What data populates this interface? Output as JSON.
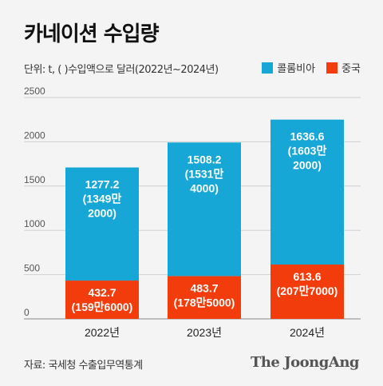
{
  "header": {
    "title": "카네이션 수입량",
    "subtitle": "단위: t, ( )수입액으로 달러(2022년~2024년)"
  },
  "legend": [
    {
      "name": "콜롬비아",
      "color": "#16a7d6"
    },
    {
      "name": "중국",
      "color": "#f23c0c"
    }
  ],
  "footer": {
    "source": "자료: 국세청 수출입무역통계",
    "brand": "The JoongAng"
  },
  "chart_data": {
    "type": "bar",
    "stacked": true,
    "categories": [
      "2022년",
      "2023년",
      "2024년"
    ],
    "ylim": [
      0,
      2500
    ],
    "yticks": [
      0,
      500,
      1000,
      1500,
      2000,
      2500
    ],
    "grid": true,
    "legend_position": "top-right",
    "series": [
      {
        "name": "중국",
        "color": "#f23c0c",
        "values": [
          432.7,
          483.7,
          613.6
        ],
        "value_labels": [
          "432.7",
          "483.7",
          "613.6"
        ],
        "amount_labels": [
          "(159만6000)",
          "(178만5000)",
          "(207만7000)"
        ]
      },
      {
        "name": "콜롬비아",
        "color": "#16a7d6",
        "values": [
          1277.2,
          1508.2,
          1636.6
        ],
        "value_labels": [
          "1277.2",
          "1508.2",
          "1636.6"
        ],
        "amount_labels": [
          "(1349만\n2000)",
          "(1531만\n4000)",
          "(1603만\n2000)"
        ]
      }
    ]
  }
}
